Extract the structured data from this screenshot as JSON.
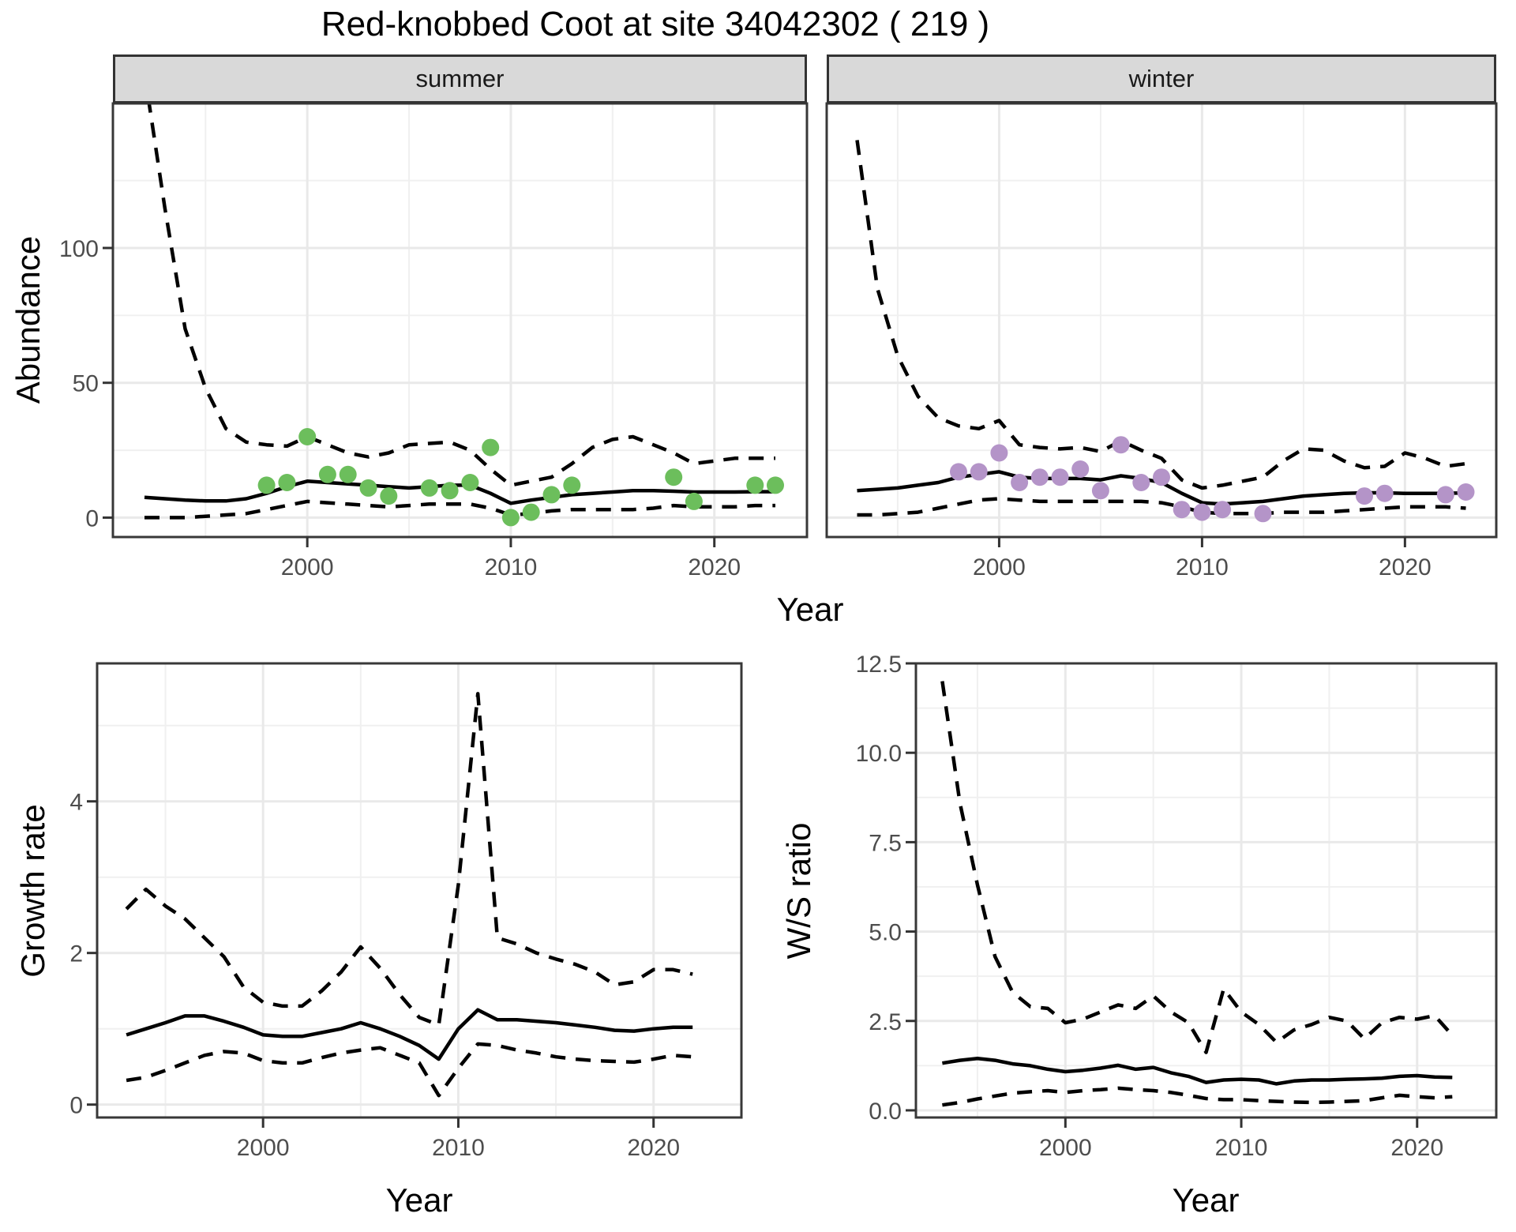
{
  "title": "Red-knobbed Coot at site 34042302 ( 219 )",
  "facets": [
    {
      "label": "summer"
    },
    {
      "label": "winter"
    }
  ],
  "axis_titles": {
    "abundance": "Abundance",
    "year_top": "Year",
    "growth": "Growth rate",
    "year_bottom_left": "Year",
    "ws_ratio": "W/S ratio",
    "year_bottom_right": "Year"
  },
  "colors": {
    "points_summer": "#6CBE5C",
    "points_winter": "#B494C8",
    "line": "#000000",
    "gridline_major": "#E9E9E9",
    "gridline_minor": "#F0F0F0",
    "panel_border": "#383838",
    "tick_mark": "#333333",
    "tick_label": "#4D4D4D",
    "strip_bg": "#D9D9D9"
  },
  "chart_data": [
    {
      "id": "abundance-summer",
      "type": "line",
      "facet": "summer",
      "xlabel": "Year",
      "ylabel": "Abundance",
      "xlim": [
        1990.45,
        2024.55
      ],
      "ylim": [
        -7.2,
        153.6
      ],
      "grid": true,
      "xticks": [
        {
          "v": 2000,
          "label": "2000"
        },
        {
          "v": 2010,
          "label": "2010"
        },
        {
          "v": 2020,
          "label": "2020"
        }
      ],
      "xminor": [
        1995,
        2005,
        2015
      ],
      "yticks": [
        {
          "v": 0,
          "label": "0"
        },
        {
          "v": 50,
          "label": "50"
        },
        {
          "v": 100,
          "label": "100"
        }
      ],
      "yminor": [
        25,
        75,
        125
      ],
      "x": [
        1992,
        1993,
        1994,
        1995,
        1996,
        1997,
        1998,
        1999,
        2000,
        2001,
        2002,
        2003,
        2004,
        2005,
        2006,
        2007,
        2008,
        2009,
        2010,
        2011,
        2012,
        2013,
        2014,
        2015,
        2016,
        2017,
        2018,
        2019,
        2020,
        2021,
        2022,
        2023
      ],
      "series": [
        {
          "name": "upper_ci",
          "style": "dashed",
          "values": [
            165,
            115,
            70,
            48,
            33,
            28,
            27,
            26.5,
            30,
            27,
            24,
            22.5,
            24,
            27,
            27.5,
            28,
            25,
            18,
            12,
            13.5,
            15,
            20,
            26,
            29,
            30,
            27,
            24,
            20,
            21,
            22,
            22,
            22
          ]
        },
        {
          "name": "median",
          "style": "solid",
          "values": [
            7.5,
            7,
            6.5,
            6.2,
            6.2,
            7,
            9,
            11.5,
            13.5,
            13,
            12.5,
            12,
            11.5,
            11,
            11.5,
            12,
            12,
            9,
            5.3,
            6.5,
            7.5,
            8.5,
            9,
            9.5,
            10,
            10,
            9.8,
            9.5,
            9.5,
            9.5,
            9.6,
            9.6
          ]
        },
        {
          "name": "lower_ci",
          "style": "dashed",
          "values": [
            0,
            0,
            0,
            0.5,
            1,
            1.5,
            3,
            4.5,
            6,
            5.5,
            5,
            4.5,
            4,
            4.5,
            5,
            5,
            5,
            3.5,
            1,
            1.5,
            2.5,
            3,
            3,
            3,
            3,
            3.5,
            4.5,
            4,
            4,
            4,
            4.5,
            4.5
          ]
        }
      ],
      "points": {
        "color": "#6CBE5C",
        "x": [
          1998,
          1999,
          2000,
          2001,
          2002,
          2003,
          2004,
          2006,
          2007,
          2008,
          2009,
          2010,
          2011,
          2012,
          2013,
          2018,
          2019,
          2022,
          2023
        ],
        "y": [
          12,
          13,
          30,
          16,
          16,
          11,
          8,
          11,
          10,
          13,
          26,
          0,
          2,
          8.5,
          12,
          15,
          6,
          12,
          12
        ]
      }
    },
    {
      "id": "abundance-winter",
      "type": "line",
      "facet": "winter",
      "xlabel": "Year",
      "ylabel": "Abundance",
      "xlim": [
        1991.5,
        2024.5
      ],
      "ylim": [
        -7.2,
        153.6
      ],
      "grid": true,
      "xticks": [
        {
          "v": 2000,
          "label": "2000"
        },
        {
          "v": 2010,
          "label": "2010"
        },
        {
          "v": 2020,
          "label": "2020"
        }
      ],
      "xminor": [
        1995,
        2005,
        2015
      ],
      "yticks": [
        {
          "v": 0,
          "label": "0"
        },
        {
          "v": 50,
          "label": "50"
        },
        {
          "v": 100,
          "label": "100"
        }
      ],
      "yminor": [
        25,
        75,
        125
      ],
      "x": [
        1993,
        1994,
        1995,
        1996,
        1997,
        1998,
        1999,
        2000,
        2001,
        2002,
        2003,
        2004,
        2005,
        2006,
        2007,
        2008,
        2009,
        2010,
        2011,
        2012,
        2013,
        2014,
        2015,
        2016,
        2017,
        2018,
        2019,
        2020,
        2021,
        2022,
        2023
      ],
      "series": [
        {
          "name": "upper_ci",
          "style": "dashed",
          "values": [
            140,
            85,
            60,
            45,
            37,
            34,
            33,
            36,
            27,
            26,
            25.5,
            26,
            24.5,
            28.5,
            25,
            22,
            14,
            11,
            12,
            13.5,
            15,
            21,
            25.5,
            25,
            21,
            18.5,
            19,
            24,
            22,
            19,
            20
          ]
        },
        {
          "name": "median",
          "style": "solid",
          "values": [
            10,
            10.5,
            11,
            12,
            13,
            15,
            16,
            17,
            15,
            14.5,
            14.5,
            14.5,
            14,
            15.5,
            14.5,
            13,
            9,
            5.5,
            5,
            5.5,
            6,
            7,
            8,
            8.5,
            9,
            9.2,
            9.2,
            9,
            9,
            9,
            9.2
          ]
        },
        {
          "name": "lower_ci",
          "style": "dashed",
          "values": [
            1,
            1,
            1.5,
            2,
            3.5,
            5,
            6.5,
            7,
            6.5,
            6,
            6,
            6,
            6,
            6,
            6,
            5.5,
            4,
            2,
            1.5,
            1.5,
            1.5,
            2,
            2,
            2,
            2.5,
            3,
            3.5,
            4,
            4,
            4,
            3.5
          ]
        }
      ],
      "points": {
        "color": "#B494C8",
        "x": [
          1998,
          1999,
          2000,
          2001,
          2002,
          2003,
          2004,
          2005,
          2006,
          2007,
          2008,
          2009,
          2010,
          2011,
          2013,
          2018,
          2019,
          2022,
          2023
        ],
        "y": [
          17,
          17,
          24,
          13,
          15,
          15,
          18,
          10,
          27,
          13,
          15,
          3,
          2,
          3,
          1.5,
          8,
          9,
          8.5,
          9.5
        ]
      }
    },
    {
      "id": "growth-rate",
      "type": "line",
      "xlabel": "Year",
      "ylabel": "Growth rate",
      "xlim": [
        1991.5,
        2024.5
      ],
      "ylim": [
        -0.17,
        5.82
      ],
      "grid": true,
      "xticks": [
        {
          "v": 2000,
          "label": "2000"
        },
        {
          "v": 2010,
          "label": "2010"
        },
        {
          "v": 2020,
          "label": "2020"
        }
      ],
      "xminor": [
        1995,
        2005,
        2015
      ],
      "yticks": [
        {
          "v": 0,
          "label": "0"
        },
        {
          "v": 2,
          "label": "2"
        },
        {
          "v": 4,
          "label": "4"
        }
      ],
      "yminor": [
        1,
        3,
        5
      ],
      "x": [
        1993,
        1994,
        1995,
        1996,
        1997,
        1998,
        1999,
        2000,
        2001,
        2002,
        2003,
        2004,
        2005,
        2006,
        2007,
        2008,
        2009,
        2010,
        2011,
        2012,
        2013,
        2014,
        2015,
        2016,
        2017,
        2018,
        2019,
        2020,
        2021,
        2022
      ],
      "series": [
        {
          "name": "upper_ci",
          "style": "dashed",
          "values": [
            2.58,
            2.84,
            2.62,
            2.45,
            2.2,
            1.95,
            1.55,
            1.35,
            1.3,
            1.3,
            1.5,
            1.75,
            2.08,
            1.8,
            1.45,
            1.15,
            1.05,
            2.9,
            5.42,
            2.2,
            2.12,
            2.0,
            1.92,
            1.85,
            1.75,
            1.58,
            1.62,
            1.78,
            1.78,
            1.72
          ]
        },
        {
          "name": "median",
          "style": "solid",
          "values": [
            0.92,
            1.0,
            1.08,
            1.17,
            1.17,
            1.1,
            1.02,
            0.92,
            0.9,
            0.9,
            0.95,
            1.0,
            1.08,
            1.0,
            0.9,
            0.78,
            0.6,
            1.0,
            1.25,
            1.12,
            1.12,
            1.1,
            1.08,
            1.05,
            1.02,
            0.98,
            0.97,
            1.0,
            1.02,
            1.02
          ]
        },
        {
          "name": "lower_ci",
          "style": "dashed",
          "values": [
            0.32,
            0.36,
            0.45,
            0.55,
            0.65,
            0.7,
            0.68,
            0.58,
            0.55,
            0.55,
            0.62,
            0.68,
            0.72,
            0.75,
            0.65,
            0.55,
            0.12,
            0.48,
            0.8,
            0.78,
            0.72,
            0.68,
            0.63,
            0.6,
            0.58,
            0.57,
            0.56,
            0.6,
            0.65,
            0.63
          ]
        }
      ]
    },
    {
      "id": "ws-ratio",
      "type": "line",
      "xlabel": "Year",
      "ylabel": "W/S ratio",
      "xlim": [
        1991.5,
        2024.5
      ],
      "ylim": [
        -0.2,
        12.5
      ],
      "grid": true,
      "xticks": [
        {
          "v": 2000,
          "label": "2000"
        },
        {
          "v": 2010,
          "label": "2010"
        },
        {
          "v": 2020,
          "label": "2020"
        }
      ],
      "xminor": [
        1995,
        2005,
        2015
      ],
      "yticks": [
        {
          "v": 0,
          "label": "0.0"
        },
        {
          "v": 2.5,
          "label": "2.5"
        },
        {
          "v": 5,
          "label": "5.0"
        },
        {
          "v": 7.5,
          "label": "7.5"
        },
        {
          "v": 10,
          "label": "10.0"
        },
        {
          "v": 12.5,
          "label": "12.5"
        }
      ],
      "yminor": [
        1.25,
        3.75,
        6.25,
        8.75,
        11.25
      ],
      "x": [
        1993,
        1994,
        1995,
        1996,
        1997,
        1998,
        1999,
        2000,
        2001,
        2002,
        2003,
        2004,
        2005,
        2006,
        2007,
        2008,
        2009,
        2010,
        2011,
        2012,
        2013,
        2014,
        2015,
        2016,
        2017,
        2018,
        2019,
        2020,
        2021,
        2022
      ],
      "series": [
        {
          "name": "upper_ci",
          "style": "dashed",
          "values": [
            12.0,
            8.6,
            6.3,
            4.3,
            3.3,
            2.9,
            2.85,
            2.45,
            2.55,
            2.75,
            2.95,
            2.85,
            3.2,
            2.75,
            2.45,
            1.62,
            3.4,
            2.75,
            2.4,
            1.9,
            2.25,
            2.4,
            2.6,
            2.5,
            2.0,
            2.45,
            2.6,
            2.55,
            2.65,
            2.1
          ]
        },
        {
          "name": "median",
          "style": "solid",
          "values": [
            1.32,
            1.4,
            1.45,
            1.4,
            1.3,
            1.25,
            1.15,
            1.08,
            1.12,
            1.18,
            1.26,
            1.15,
            1.2,
            1.05,
            0.95,
            0.78,
            0.85,
            0.87,
            0.85,
            0.74,
            0.82,
            0.85,
            0.85,
            0.87,
            0.88,
            0.9,
            0.95,
            0.97,
            0.93,
            0.92
          ]
        },
        {
          "name": "lower_ci",
          "style": "dashed",
          "values": [
            0.15,
            0.22,
            0.32,
            0.4,
            0.48,
            0.52,
            0.55,
            0.5,
            0.55,
            0.58,
            0.62,
            0.58,
            0.55,
            0.5,
            0.42,
            0.33,
            0.3,
            0.3,
            0.27,
            0.25,
            0.23,
            0.22,
            0.23,
            0.25,
            0.27,
            0.35,
            0.42,
            0.38,
            0.35,
            0.38
          ]
        }
      ]
    }
  ]
}
